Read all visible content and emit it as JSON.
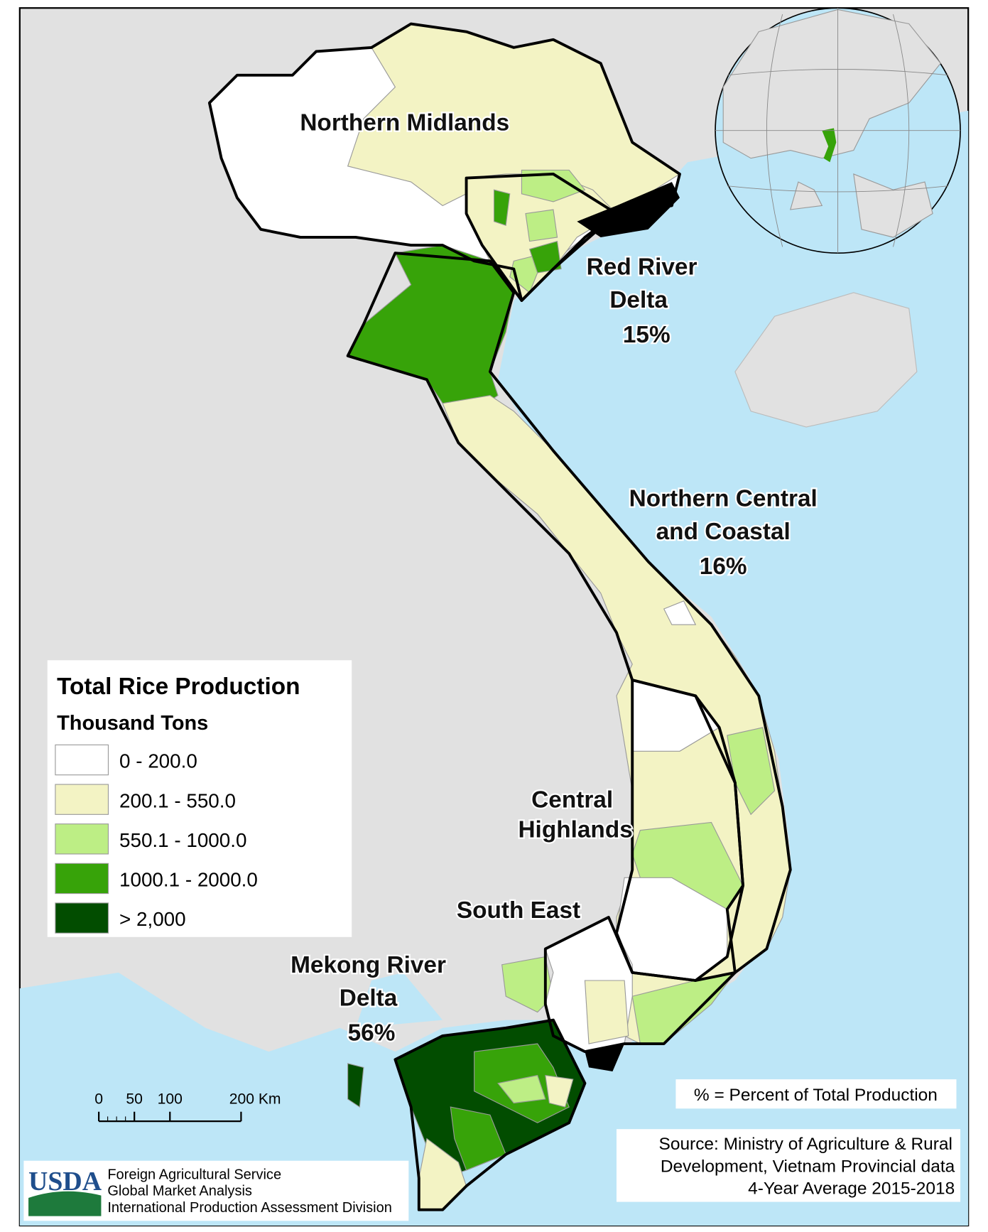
{
  "regions": [
    {
      "lines": [
        "Northern Midlands"
      ]
    },
    {
      "lines": [
        "Red River",
        "Delta"
      ],
      "share": "15%"
    },
    {
      "lines": [
        "Northern Central",
        "and Coastal"
      ],
      "share": "16%"
    },
    {
      "lines": [
        "Central",
        "Highlands"
      ]
    },
    {
      "lines": [
        "South East"
      ]
    },
    {
      "lines": [
        "Mekong River",
        "Delta"
      ],
      "share": "56%"
    }
  ],
  "legend": {
    "title": "Total Rice Production",
    "subtitle": "Thousand Tons",
    "items": [
      {
        "label": "0 - 200.0",
        "color": "#ffffff"
      },
      {
        "label": "200.1 - 550.0",
        "color": "#f3f3c4"
      },
      {
        "label": "550.1 - 1000.0",
        "color": "#bdee85"
      },
      {
        "label": "1000.1 - 2000.0",
        "color": "#37a309"
      },
      {
        "label": "> 2,000",
        "color": "#024d00"
      }
    ]
  },
  "scale_bar": {
    "ticks": [
      0,
      50,
      100,
      {
        "value": 200,
        "label": "200 Km"
      }
    ]
  },
  "note": "% = Percent of Total Production",
  "source": [
    "Source: Ministry of Agriculture & Rural",
    "Development, Vietnam Provincial data",
    "4-Year Average 2015-2018"
  ],
  "credits": {
    "logo": "USDA",
    "lines": [
      "Foreign Agricultural Service",
      "Global Market Analysis",
      "International Production Assessment Division"
    ]
  }
}
